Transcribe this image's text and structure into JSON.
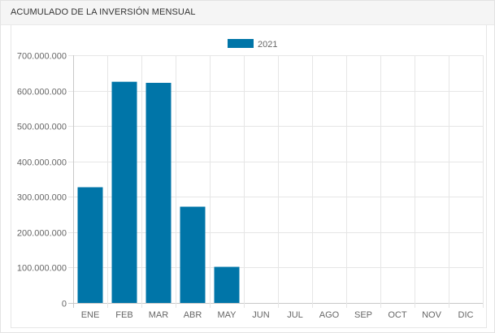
{
  "panel": {
    "title": "ACUMULADO DE LA INVERSIÓN MENSUAL"
  },
  "chart_data": {
    "type": "bar",
    "categories": [
      "ENE",
      "FEB",
      "MAR",
      "ABR",
      "MAY",
      "JUN",
      "JUL",
      "AGO",
      "SEP",
      "OCT",
      "NOV",
      "DIC"
    ],
    "series": [
      {
        "name": "2021",
        "color": "#0075a8",
        "values": [
          327000000,
          625000000,
          622000000,
          272000000,
          102000000,
          0,
          0,
          0,
          0,
          0,
          0,
          0
        ]
      }
    ],
    "ylim": [
      0,
      700000000
    ],
    "yticks": [
      "0",
      "100.000.000",
      "200.000.000",
      "300.000.000",
      "400.000.000",
      "500.000.000",
      "600.000.000",
      "700.000.000"
    ],
    "grid": true,
    "legend": "top-center"
  }
}
